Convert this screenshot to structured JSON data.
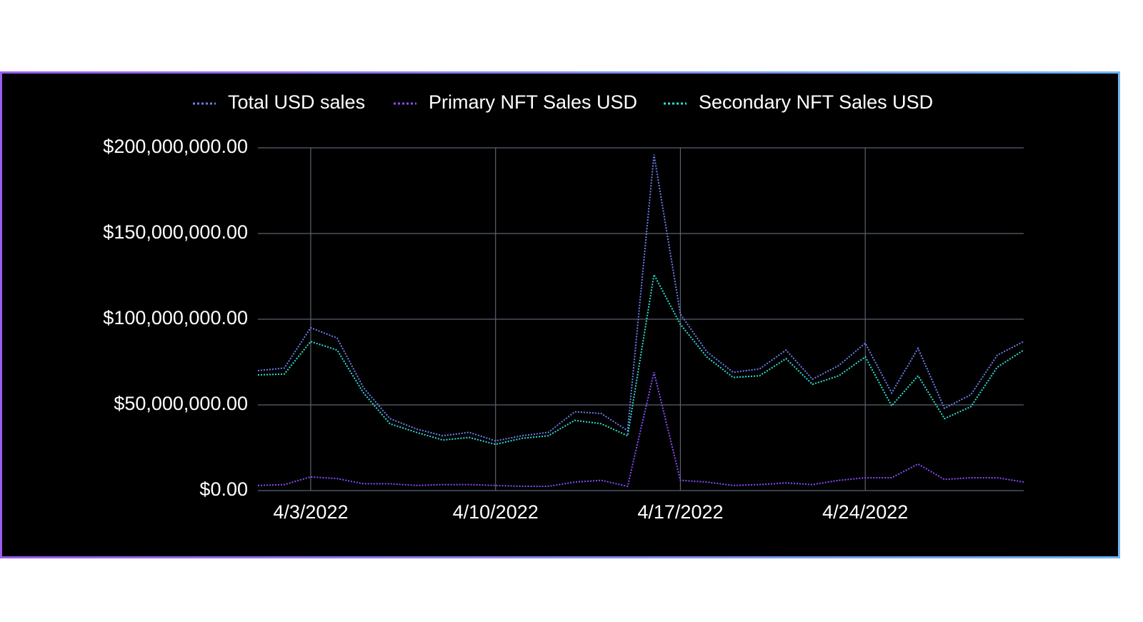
{
  "chart_data": {
    "type": "line",
    "x": [
      "4/1/2022",
      "4/2/2022",
      "4/3/2022",
      "4/4/2022",
      "4/5/2022",
      "4/6/2022",
      "4/7/2022",
      "4/8/2022",
      "4/9/2022",
      "4/10/2022",
      "4/11/2022",
      "4/12/2022",
      "4/13/2022",
      "4/14/2022",
      "4/15/2022",
      "4/16/2022",
      "4/17/2022",
      "4/18/2022",
      "4/19/2022",
      "4/20/2022",
      "4/21/2022",
      "4/22/2022",
      "4/23/2022",
      "4/24/2022",
      "4/25/2022",
      "4/26/2022",
      "4/27/2022",
      "4/28/2022",
      "4/29/2022",
      "4/30/2022"
    ],
    "xticks": [
      "4/3/2022",
      "4/10/2022",
      "4/17/2022",
      "4/24/2022"
    ],
    "series": [
      {
        "name": "Total USD sales",
        "color": "#6b7ff0",
        "values": [
          70000000,
          71500000,
          95000000,
          89000000,
          60000000,
          42000000,
          36000000,
          32000000,
          34000000,
          29000000,
          32000000,
          34000000,
          46000000,
          45000000,
          35000000,
          196000000,
          103000000,
          81000000,
          69000000,
          71000000,
          82000000,
          65000000,
          73000000,
          86000000,
          57000000,
          83000000,
          48000000,
          56000000,
          79000000,
          87000000
        ]
      },
      {
        "name": "Primary NFT Sales USD",
        "color": "#8a4dff",
        "values": [
          3000000,
          3500000,
          8000000,
          7000000,
          4000000,
          4000000,
          3000000,
          3500000,
          3500000,
          3000000,
          2500000,
          2500000,
          5000000,
          6000000,
          2500000,
          69000000,
          6000000,
          5000000,
          3000000,
          3500000,
          4500000,
          3500000,
          6000000,
          7500000,
          7500000,
          15500000,
          6500000,
          7500000,
          7500000,
          5000000
        ]
      },
      {
        "name": "Secondary NFT Sales USD",
        "color": "#2de0d0",
        "values": [
          67500000,
          68000000,
          87000000,
          82000000,
          57000000,
          39000000,
          34000000,
          29500000,
          31000000,
          27000000,
          30500000,
          32000000,
          41000000,
          39000000,
          32000000,
          126000000,
          97000000,
          78000000,
          66000000,
          67000000,
          77000000,
          62000000,
          67000000,
          78000000,
          49500000,
          67000000,
          42000000,
          49000000,
          72000000,
          82000000
        ]
      }
    ],
    "ylim": [
      0,
      200000000
    ],
    "yticks": [
      {
        "value": 0,
        "label": "$0.00"
      },
      {
        "value": 50000000,
        "label": "$50,000,000.00"
      },
      {
        "value": 100000000,
        "label": "$100,000,000.00"
      },
      {
        "value": 150000000,
        "label": "$150,000,000.00"
      },
      {
        "value": 200000000,
        "label": "$200,000,000.00"
      }
    ],
    "grid": true,
    "legend": "top"
  }
}
